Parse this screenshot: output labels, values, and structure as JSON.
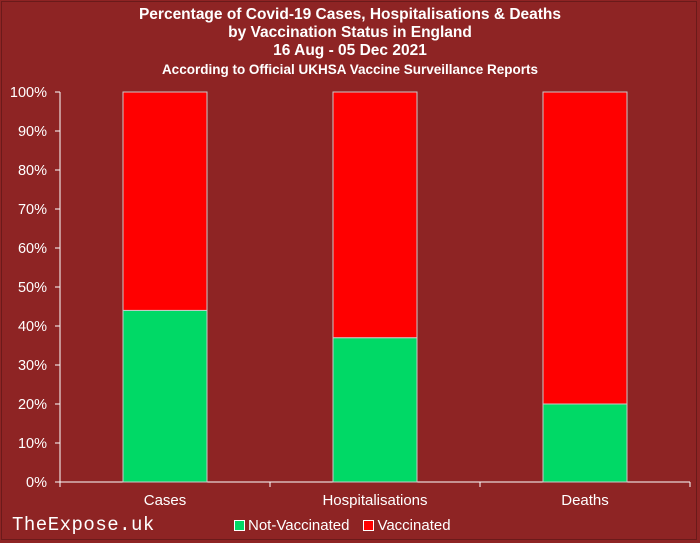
{
  "titles": {
    "line1": "Percentage of Covid-19 Cases, Hospitalisations & Deaths",
    "line2": "by Vaccination Status in England",
    "line3": "16 Aug - 05 Dec 2021",
    "line4": "According to Official UKHSA Vaccine Surveillance Reports"
  },
  "watermark": "TheExpose.uk",
  "legend": [
    {
      "label": "Not-Vaccinated",
      "color": "#00D966"
    },
    {
      "label": "Vaccinated",
      "color": "#FF0000"
    }
  ],
  "chart_data": {
    "type": "bar",
    "stacked": true,
    "percent": true,
    "categories": [
      "Cases",
      "Hospitalisations",
      "Deaths"
    ],
    "series": [
      {
        "name": "Not-Vaccinated",
        "values": [
          44,
          37,
          20
        ],
        "color": "#00D966"
      },
      {
        "name": "Vaccinated",
        "values": [
          56,
          63,
          80
        ],
        "color": "#FF0000"
      }
    ],
    "ylim": [
      0,
      100
    ],
    "yticks": [
      "0%",
      "10%",
      "20%",
      "30%",
      "40%",
      "50%",
      "60%",
      "70%",
      "80%",
      "90%",
      "100%"
    ],
    "grid": false,
    "legend_position": "bottom"
  }
}
